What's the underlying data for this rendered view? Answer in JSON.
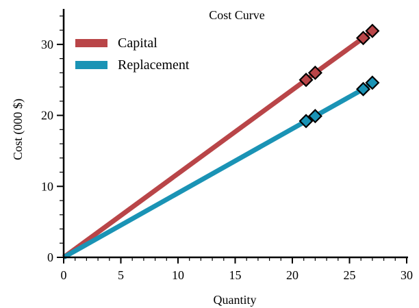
{
  "chart_data": {
    "type": "line",
    "title": "Cost Curve",
    "xlabel": "Quantity",
    "ylabel": "Cost (000 $)",
    "xlim": [
      0,
      30
    ],
    "ylim": [
      0,
      35
    ],
    "x_ticks": [
      0,
      5,
      10,
      15,
      20,
      25,
      30
    ],
    "y_ticks": [
      0,
      10,
      20,
      30
    ],
    "grid": false,
    "legend_position": "top-left",
    "series": [
      {
        "name": "Capital",
        "color": "#b94548",
        "x": [
          0,
          21.2,
          22,
          26.2,
          27
        ],
        "y": [
          0,
          25.0,
          26.0,
          30.9,
          31.9
        ]
      },
      {
        "name": "Replacement",
        "color": "#1a93b5",
        "x": [
          0,
          21.2,
          22,
          26.2,
          27
        ],
        "y": [
          0,
          19.2,
          19.9,
          23.7,
          24.6
        ]
      }
    ]
  }
}
